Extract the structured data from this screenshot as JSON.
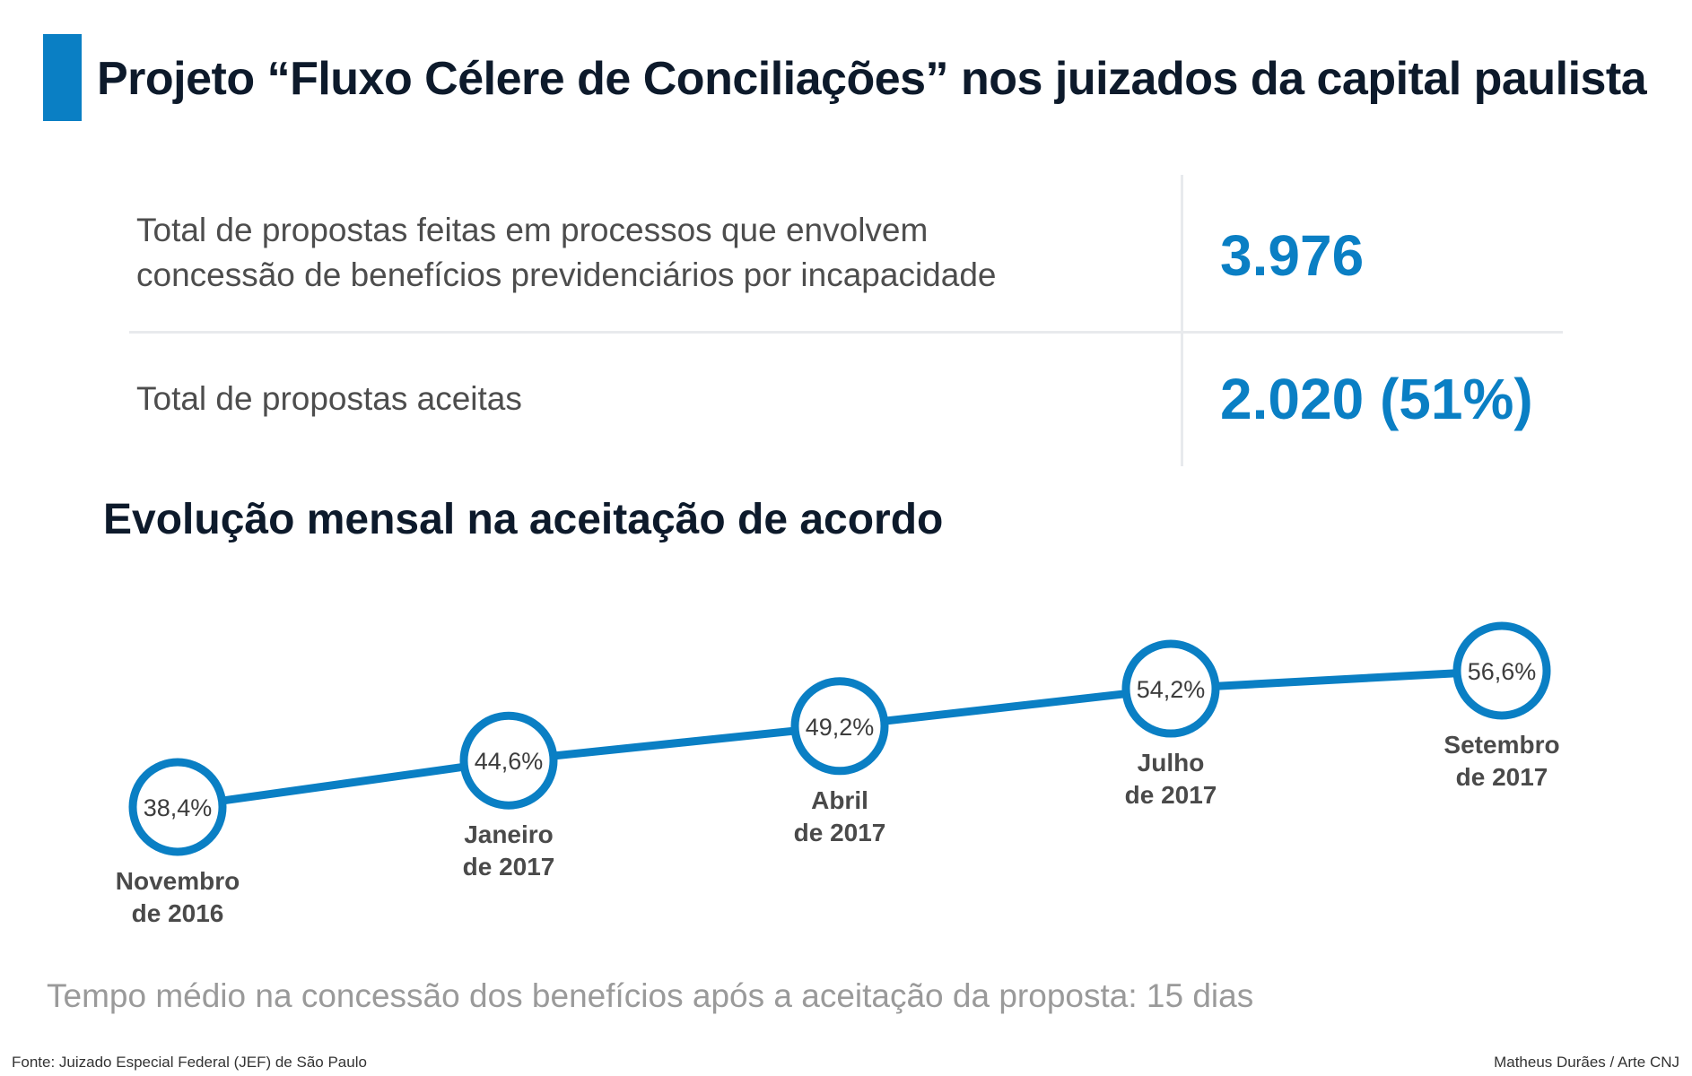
{
  "title": "Projeto “Fluxo Célere de Conciliações” nos juizados da capital paulista",
  "stats": [
    {
      "label_lines": [
        "Total de propostas feitas em processos que envolvem",
        "concessão de benefícios previdenciários por incapacidade"
      ],
      "value": "3.976"
    },
    {
      "label_lines": [
        "Total de propostas aceitas"
      ],
      "value": "2.020 (51%)"
    }
  ],
  "chart_data": {
    "type": "line",
    "title": "Evolução mensal na aceitação de acordo",
    "categories": [
      [
        "Novembro",
        "de 2016"
      ],
      [
        "Janeiro",
        "de 2017"
      ],
      [
        "Abril",
        "de 2017"
      ],
      [
        "Julho",
        "de 2017"
      ],
      [
        "Setembro",
        "de 2017"
      ]
    ],
    "values": [
      38.4,
      44.6,
      49.2,
      54.2,
      56.6
    ],
    "data_labels": [
      "38,4%",
      "44,6%",
      "49,2%",
      "54,2%",
      "56,6%"
    ],
    "unit": "%",
    "grid": false,
    "legend": "none",
    "color": "#0a7fc4"
  },
  "note": "Tempo médio na concessão dos benefícios após a aceitação da proposta: 15 dias",
  "source": "Fonte: Juizado Especial Federal (JEF) de São Paulo",
  "credit": "Matheus Durães / Arte CNJ"
}
